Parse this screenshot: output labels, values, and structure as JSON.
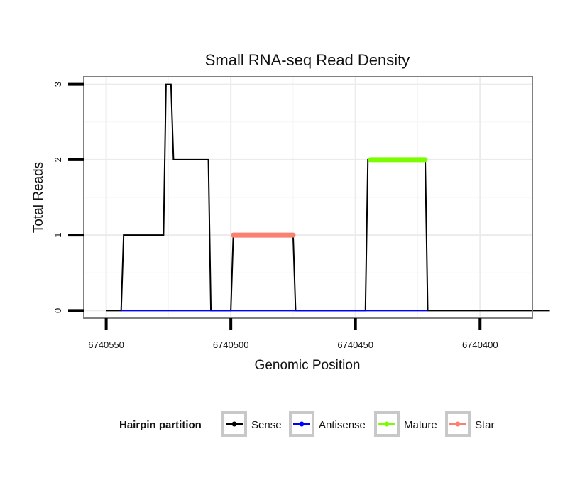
{
  "chart_data": {
    "type": "line",
    "title": "Small RNA-seq Read Density",
    "xlabel": "Genomic Position",
    "ylabel": "Total Reads",
    "x_reversed": true,
    "xlim": [
      6740559,
      6740379
    ],
    "ylim": [
      -0.1,
      3.1
    ],
    "x_ticks": [
      6740550,
      6740500,
      6740450,
      6740400
    ],
    "x_tick_labels": [
      "6740550",
      "6740500",
      "6740450",
      "6740400"
    ],
    "y_ticks": [
      0,
      1,
      2,
      3
    ],
    "y_tick_labels": [
      "0",
      "1",
      "2",
      "3"
    ],
    "grid": true,
    "series": [
      {
        "name": "Sense",
        "color": "#000000",
        "style": "line",
        "points": [
          [
            6740550,
            0
          ],
          [
            6740544,
            0
          ],
          [
            6740543,
            1
          ],
          [
            6740527,
            1
          ],
          [
            6740526,
            3
          ],
          [
            6740524,
            3
          ],
          [
            6740523,
            2
          ],
          [
            6740509,
            2
          ],
          [
            6740508,
            0
          ],
          [
            6740500,
            0
          ],
          [
            6740499,
            1
          ],
          [
            6740475,
            1
          ],
          [
            6740474,
            0
          ],
          [
            6740446,
            0
          ],
          [
            6740445,
            2
          ],
          [
            6740422,
            2
          ],
          [
            6740421,
            0
          ],
          [
            6740372,
            0
          ]
        ]
      },
      {
        "name": "Antisense",
        "color": "#0000ff",
        "style": "line",
        "points": [
          [
            6740544,
            0
          ],
          [
            6740421,
            0
          ]
        ]
      },
      {
        "name": "Mature",
        "color": "#7cfc00",
        "style": "thick-segment",
        "points": [
          [
            6740444,
            2
          ],
          [
            6740422,
            2
          ]
        ]
      },
      {
        "name": "Star",
        "color": "#fa8072",
        "style": "thick-segment",
        "points": [
          [
            6740499,
            1
          ],
          [
            6740475,
            1
          ]
        ]
      }
    ],
    "legend": {
      "title": "Hairpin partition",
      "position": "bottom",
      "items": [
        "Sense",
        "Antisense",
        "Mature",
        "Star"
      ]
    }
  }
}
